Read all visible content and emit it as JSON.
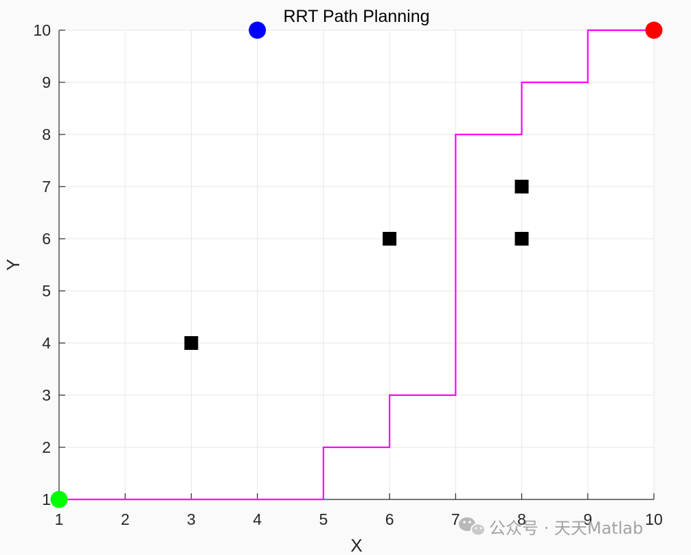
{
  "chart_data": {
    "type": "scatter",
    "title": "RRT Path Planning",
    "xlabel": "X",
    "ylabel": "Y",
    "xlim": [
      1,
      10
    ],
    "ylim": [
      1,
      10
    ],
    "xticks": [
      1,
      2,
      3,
      4,
      5,
      6,
      7,
      8,
      9,
      10
    ],
    "yticks": [
      1,
      2,
      3,
      4,
      5,
      6,
      7,
      8,
      9,
      10
    ],
    "grid": true,
    "start": {
      "x": 1,
      "y": 1,
      "color": "#00ff00"
    },
    "goal": {
      "x": 10,
      "y": 10,
      "color": "#ff0000"
    },
    "node": {
      "x": 4,
      "y": 10,
      "color": "#0000ff"
    },
    "obstacles": {
      "color": "#000000",
      "points": [
        {
          "x": 3,
          "y": 4
        },
        {
          "x": 6,
          "y": 6
        },
        {
          "x": 8,
          "y": 7
        },
        {
          "x": 8,
          "y": 6
        }
      ]
    },
    "path": {
      "color": "#ff00ff",
      "points": [
        {
          "x": 1,
          "y": 1
        },
        {
          "x": 5,
          "y": 1
        },
        {
          "x": 5,
          "y": 2
        },
        {
          "x": 6,
          "y": 2
        },
        {
          "x": 6,
          "y": 3
        },
        {
          "x": 7,
          "y": 3
        },
        {
          "x": 7,
          "y": 8
        },
        {
          "x": 8,
          "y": 8
        },
        {
          "x": 8,
          "y": 9
        },
        {
          "x": 9,
          "y": 9
        },
        {
          "x": 9,
          "y": 10
        },
        {
          "x": 10,
          "y": 10
        }
      ]
    }
  },
  "watermark": {
    "icon": "wechat-icon",
    "text": "公众号 · 天天Matlab"
  }
}
